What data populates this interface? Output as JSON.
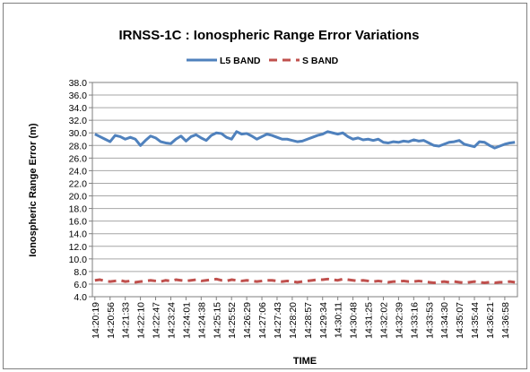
{
  "chart_data": {
    "type": "line",
    "title": "IRNSS-1C : Ionospheric Range Error Variations",
    "y_label": "Ionospheric Range Error (m)",
    "x_label": "TIME",
    "legend": "top",
    "grid": true,
    "categories": [
      "14:20:19",
      null,
      null,
      "14:20:56",
      null,
      null,
      "14:21:33",
      null,
      null,
      "14:22:10",
      null,
      null,
      "14:22:47",
      null,
      null,
      "14:23:24",
      null,
      null,
      "14:24:01",
      null,
      null,
      "14:24:38",
      null,
      null,
      "14:25:15",
      null,
      null,
      "14:25:52",
      null,
      null,
      "14:26:29",
      null,
      null,
      "14:27:06",
      null,
      null,
      "14:27:43",
      null,
      null,
      "14:28:20",
      null,
      null,
      "14:28:57",
      null,
      null,
      "14:29:34",
      null,
      null,
      "14:30:11",
      null,
      null,
      "14:30:48",
      null,
      null,
      "14:31:25",
      null,
      null,
      "14:32:02",
      null,
      null,
      "14:32:39",
      null,
      null,
      "14:33:16",
      null,
      null,
      "14:33:53",
      null,
      null,
      "14:34:30",
      null,
      null,
      "14:35:07",
      null,
      null,
      "14:35:44",
      null,
      null,
      "14:36:21",
      null,
      null,
      "14:36:58",
      null,
      null
    ],
    "series": [
      {
        "name": "L5 BAND",
        "color": "#4f81bd",
        "line_style": "solid",
        "values": [
          29.8,
          29.4,
          29.0,
          28.6,
          29.6,
          29.4,
          29.0,
          29.3,
          29.0,
          28.0,
          28.8,
          29.5,
          29.2,
          28.6,
          28.4,
          28.3,
          29.0,
          29.5,
          28.7,
          29.4,
          29.7,
          29.2,
          28.8,
          29.6,
          30.0,
          29.9,
          29.3,
          29.0,
          30.2,
          29.8,
          29.9,
          29.5,
          29.0,
          29.4,
          29.8,
          29.6,
          29.3,
          29.0,
          29.0,
          28.8,
          28.6,
          28.7,
          29.0,
          29.3,
          29.6,
          29.8,
          30.2,
          30.0,
          29.8,
          30.0,
          29.4,
          29.0,
          29.2,
          28.9,
          29.0,
          28.8,
          29.0,
          28.5,
          28.4,
          28.6,
          28.5,
          28.7,
          28.6,
          28.9,
          28.7,
          28.8,
          28.4,
          28.0,
          27.9,
          28.2,
          28.5,
          28.6,
          28.8,
          28.2,
          28.0,
          27.8,
          28.6,
          28.5,
          28.0,
          27.6,
          27.9,
          28.2,
          28.4,
          28.5
        ]
      },
      {
        "name": "S BAND",
        "color": "#c0504d",
        "line_style": "dashed",
        "values": [
          6.6,
          6.7,
          6.5,
          6.4,
          6.5,
          6.6,
          6.4,
          6.5,
          6.3,
          6.4,
          6.5,
          6.6,
          6.5,
          6.4,
          6.6,
          6.5,
          6.7,
          6.6,
          6.5,
          6.6,
          6.7,
          6.5,
          6.6,
          6.7,
          6.8,
          6.6,
          6.5,
          6.7,
          6.6,
          6.5,
          6.6,
          6.5,
          6.4,
          6.5,
          6.6,
          6.6,
          6.5,
          6.4,
          6.5,
          6.4,
          6.3,
          6.4,
          6.5,
          6.6,
          6.7,
          6.7,
          6.8,
          6.7,
          6.6,
          6.8,
          6.7,
          6.6,
          6.5,
          6.6,
          6.5,
          6.4,
          6.5,
          6.4,
          6.3,
          6.4,
          6.4,
          6.5,
          6.4,
          6.4,
          6.5,
          6.4,
          6.3,
          6.2,
          6.3,
          6.4,
          6.3,
          6.4,
          6.3,
          6.2,
          6.3,
          6.4,
          6.3,
          6.2,
          6.3,
          6.2,
          6.3,
          6.3,
          6.4,
          6.3
        ]
      }
    ],
    "ylim": [
      4,
      38
    ],
    "yticks": [
      {
        "value": 4,
        "label": "4.0"
      },
      {
        "value": 6,
        "label": "6.0"
      },
      {
        "value": 8,
        "label": "8.0"
      },
      {
        "value": 10,
        "label": "10.0"
      },
      {
        "value": 12,
        "label": "12.0"
      },
      {
        "value": 14,
        "label": "14.0"
      },
      {
        "value": 16,
        "label": "16.0"
      },
      {
        "value": 18,
        "label": "18.0"
      },
      {
        "value": 20,
        "label": "20.0"
      },
      {
        "value": 22,
        "label": "22.0"
      },
      {
        "value": 24,
        "label": "24.0"
      },
      {
        "value": 26,
        "label": "26.0"
      },
      {
        "value": 28,
        "label": "28.0"
      },
      {
        "value": 30,
        "label": "30.0"
      },
      {
        "value": 32,
        "label": "32.0"
      },
      {
        "value": 34,
        "label": "34.0"
      },
      {
        "value": 36,
        "label": "36.0"
      },
      {
        "value": 38,
        "label": "38.0"
      }
    ]
  }
}
